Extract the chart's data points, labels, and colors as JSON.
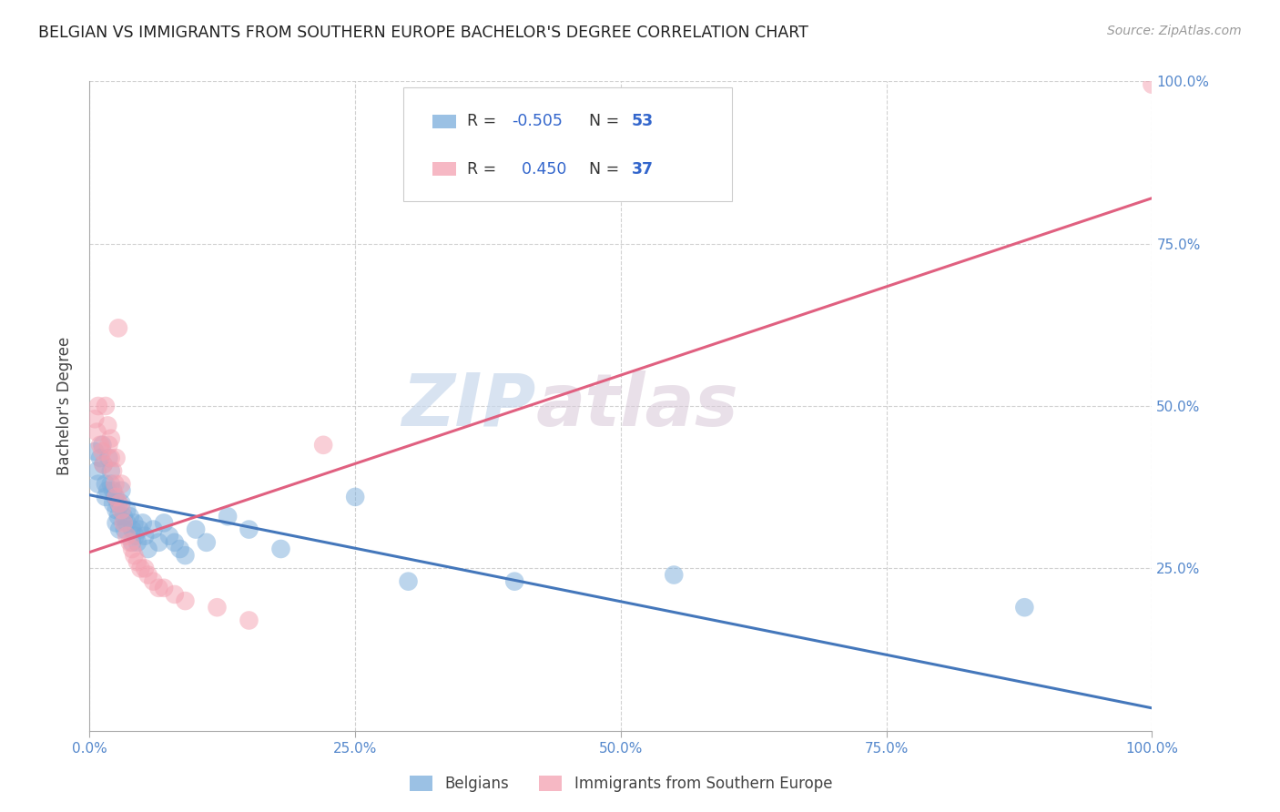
{
  "title": "BELGIAN VS IMMIGRANTS FROM SOUTHERN EUROPE BACHELOR'S DEGREE CORRELATION CHART",
  "source": "Source: ZipAtlas.com",
  "ylabel": "Bachelor's Degree",
  "xlim": [
    0,
    1.0
  ],
  "ylim": [
    0,
    1.0
  ],
  "xticks": [
    0.0,
    0.25,
    0.5,
    0.75,
    1.0
  ],
  "yticks": [
    0.25,
    0.5,
    0.75,
    1.0
  ],
  "xticklabels": [
    "0.0%",
    "25.0%",
    "50.0%",
    "75.0%",
    "100.0%"
  ],
  "yticklabels": [
    "25.0%",
    "50.0%",
    "75.0%",
    "100.0%"
  ],
  "grid_color": "#cccccc",
  "background_color": "#ffffff",
  "watermark_zip": "ZIP",
  "watermark_atlas": "atlas",
  "legend_R_blue": "-0.505",
  "legend_N_blue": "53",
  "legend_R_pink": "0.450",
  "legend_N_pink": "37",
  "blue_color": "#7aaddb",
  "pink_color": "#f4a0b0",
  "blue_line_color": "#4477bb",
  "pink_line_color": "#e06080",
  "blue_line_x0": 0.0,
  "blue_line_y0": 0.363,
  "blue_line_x1": 1.0,
  "blue_line_y1": 0.035,
  "pink_line_x0": 0.0,
  "pink_line_y0": 0.275,
  "pink_line_x1": 1.0,
  "pink_line_y1": 0.82,
  "blue_scatter": [
    [
      0.005,
      0.43
    ],
    [
      0.007,
      0.4
    ],
    [
      0.008,
      0.38
    ],
    [
      0.01,
      0.42
    ],
    [
      0.012,
      0.44
    ],
    [
      0.013,
      0.41
    ],
    [
      0.015,
      0.38
    ],
    [
      0.015,
      0.36
    ],
    [
      0.017,
      0.37
    ],
    [
      0.018,
      0.42
    ],
    [
      0.02,
      0.4
    ],
    [
      0.02,
      0.38
    ],
    [
      0.022,
      0.37
    ],
    [
      0.022,
      0.35
    ],
    [
      0.024,
      0.36
    ],
    [
      0.025,
      0.34
    ],
    [
      0.025,
      0.32
    ],
    [
      0.027,
      0.35
    ],
    [
      0.027,
      0.33
    ],
    [
      0.028,
      0.31
    ],
    [
      0.03,
      0.37
    ],
    [
      0.03,
      0.35
    ],
    [
      0.032,
      0.33
    ],
    [
      0.033,
      0.31
    ],
    [
      0.035,
      0.34
    ],
    [
      0.035,
      0.32
    ],
    [
      0.038,
      0.33
    ],
    [
      0.04,
      0.31
    ],
    [
      0.04,
      0.29
    ],
    [
      0.042,
      0.32
    ],
    [
      0.043,
      0.3
    ],
    [
      0.045,
      0.29
    ],
    [
      0.047,
      0.31
    ],
    [
      0.05,
      0.32
    ],
    [
      0.052,
      0.3
    ],
    [
      0.055,
      0.28
    ],
    [
      0.06,
      0.31
    ],
    [
      0.065,
      0.29
    ],
    [
      0.07,
      0.32
    ],
    [
      0.075,
      0.3
    ],
    [
      0.08,
      0.29
    ],
    [
      0.085,
      0.28
    ],
    [
      0.09,
      0.27
    ],
    [
      0.1,
      0.31
    ],
    [
      0.11,
      0.29
    ],
    [
      0.13,
      0.33
    ],
    [
      0.15,
      0.31
    ],
    [
      0.18,
      0.28
    ],
    [
      0.25,
      0.36
    ],
    [
      0.3,
      0.23
    ],
    [
      0.4,
      0.23
    ],
    [
      0.55,
      0.24
    ],
    [
      0.88,
      0.19
    ]
  ],
  "pink_scatter": [
    [
      0.005,
      0.48
    ],
    [
      0.007,
      0.46
    ],
    [
      0.008,
      0.5
    ],
    [
      0.01,
      0.44
    ],
    [
      0.012,
      0.43
    ],
    [
      0.013,
      0.41
    ],
    [
      0.015,
      0.5
    ],
    [
      0.017,
      0.47
    ],
    [
      0.018,
      0.44
    ],
    [
      0.02,
      0.45
    ],
    [
      0.02,
      0.42
    ],
    [
      0.022,
      0.4
    ],
    [
      0.024,
      0.38
    ],
    [
      0.025,
      0.42
    ],
    [
      0.025,
      0.36
    ],
    [
      0.027,
      0.62
    ],
    [
      0.028,
      0.35
    ],
    [
      0.03,
      0.38
    ],
    [
      0.03,
      0.34
    ],
    [
      0.032,
      0.32
    ],
    [
      0.035,
      0.3
    ],
    [
      0.038,
      0.29
    ],
    [
      0.04,
      0.28
    ],
    [
      0.042,
      0.27
    ],
    [
      0.045,
      0.26
    ],
    [
      0.048,
      0.25
    ],
    [
      0.052,
      0.25
    ],
    [
      0.055,
      0.24
    ],
    [
      0.06,
      0.23
    ],
    [
      0.065,
      0.22
    ],
    [
      0.07,
      0.22
    ],
    [
      0.08,
      0.21
    ],
    [
      0.09,
      0.2
    ],
    [
      0.12,
      0.19
    ],
    [
      0.15,
      0.17
    ],
    [
      0.22,
      0.44
    ],
    [
      1.0,
      0.995
    ]
  ]
}
